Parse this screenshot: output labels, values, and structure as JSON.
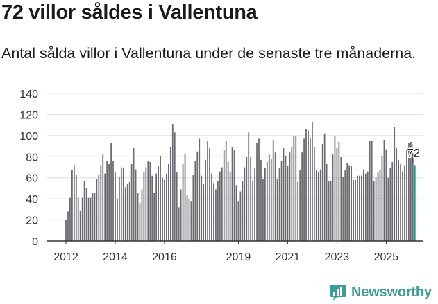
{
  "header": {
    "title": "72 villor såldes i Vallentuna",
    "subtitle": "Antal sålda villor i Vallentuna under de senaste tre månaderna."
  },
  "brand": {
    "name": "Newsworthy",
    "icon": "newsworthy-chart-icon",
    "color": "#3f9e93"
  },
  "colors": {
    "bar": "#6b6a70",
    "highlight": "#2a9a8e",
    "grid": "#dcdcdc",
    "axis": "#333333"
  },
  "chart_data": {
    "type": "bar",
    "y_ticks": [
      0,
      20,
      40,
      60,
      80,
      100,
      120,
      140
    ],
    "ylim": [
      0,
      140
    ],
    "x_tick_labels": [
      "2012",
      "2014",
      "2016",
      "2019",
      "2021",
      "2023",
      "2025"
    ],
    "x_tick_years": [
      2012,
      2014,
      2016,
      2019,
      2021,
      2023,
      2025
    ],
    "x_start": 2012.0,
    "x_end": 2025.75,
    "highlight_label": "72",
    "values": [
      20,
      28,
      41,
      67,
      72,
      63,
      41,
      29,
      41,
      57,
      50,
      41,
      41,
      46,
      46,
      59,
      63,
      72,
      82,
      64,
      76,
      73,
      93,
      76,
      65,
      40,
      61,
      70,
      69,
      51,
      54,
      56,
      73,
      88,
      68,
      46,
      36,
      49,
      65,
      70,
      76,
      75,
      62,
      46,
      64,
      71,
      81,
      60,
      58,
      64,
      73,
      89,
      111,
      103,
      65,
      32,
      49,
      73,
      83,
      44,
      40,
      38,
      63,
      76,
      85,
      97,
      62,
      54,
      77,
      95,
      88,
      64,
      55,
      49,
      57,
      66,
      70,
      86,
      95,
      75,
      66,
      89,
      86,
      53,
      38,
      47,
      57,
      70,
      80,
      103,
      80,
      57,
      69,
      93,
      97,
      77,
      59,
      69,
      75,
      82,
      78,
      96,
      84,
      59,
      69,
      76,
      88,
      81,
      71,
      84,
      89,
      100,
      100,
      56,
      67,
      84,
      97,
      106,
      105,
      98,
      113,
      89,
      67,
      65,
      68,
      92,
      102,
      73,
      57,
      57,
      82,
      100,
      88,
      94,
      80,
      61,
      67,
      74,
      72,
      71,
      58,
      58,
      62,
      62,
      62,
      68,
      64,
      66,
      95,
      95,
      57,
      60,
      65,
      67,
      81,
      96,
      87,
      60,
      69,
      75,
      108,
      88,
      77,
      73,
      66,
      72,
      86,
      93,
      94,
      83,
      72
    ]
  }
}
